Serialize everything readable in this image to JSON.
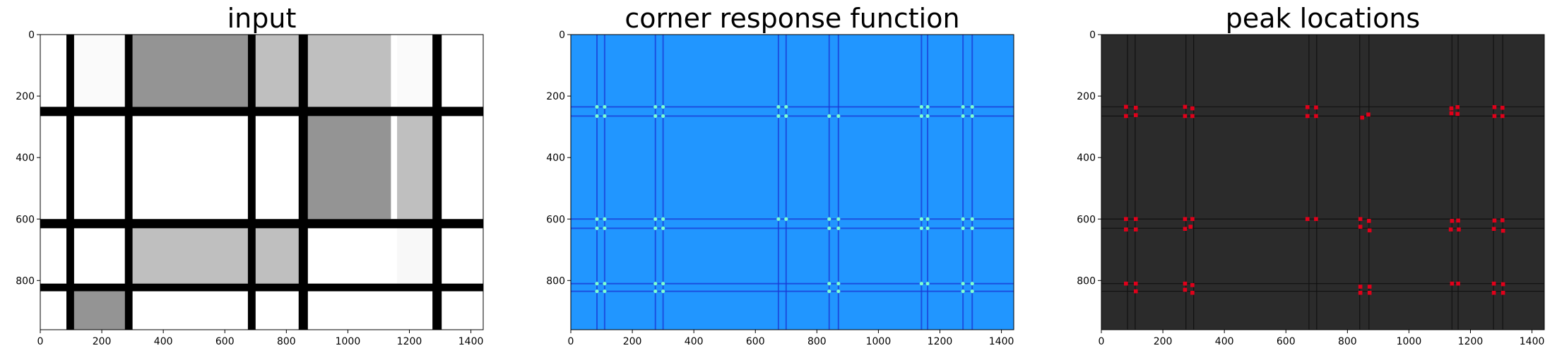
{
  "chart_data": [
    {
      "type": "heatmap",
      "title": "input",
      "colormap": "gray",
      "xlim": [
        0,
        1440
      ],
      "ylim": [
        960,
        0
      ],
      "xticks": [
        0,
        200,
        400,
        600,
        800,
        1000,
        1200,
        1400
      ],
      "yticks": [
        0,
        200,
        400,
        600,
        800
      ],
      "background": "#ffffff",
      "bars_color": "#000000",
      "v_bars": [
        [
          85,
          110
        ],
        [
          275,
          300
        ],
        [
          675,
          700
        ],
        [
          840,
          870
        ],
        [
          1275,
          1305
        ]
      ],
      "h_bars": [
        [
          235,
          265
        ],
        [
          600,
          630
        ],
        [
          810,
          835
        ]
      ],
      "filled_cells": [
        {
          "x": [
            300,
            675
          ],
          "y": [
            0,
            235
          ],
          "shade": "#949494"
        },
        {
          "x": [
            700,
            1140
          ],
          "y": [
            0,
            235
          ],
          "shade": "#bfbfbf"
        },
        {
          "x": [
            870,
            1140
          ],
          "y": [
            265,
            600
          ],
          "shade": "#949494"
        },
        {
          "x": [
            1160,
            1275
          ],
          "y": [
            265,
            600
          ],
          "shade": "#bfbfbf"
        },
        {
          "x": [
            300,
            840
          ],
          "y": [
            630,
            810
          ],
          "shade": "#bfbfbf"
        },
        {
          "x": [
            1160,
            1275
          ],
          "y": [
            630,
            810
          ],
          "shade": "#f8f8f8"
        },
        {
          "x": [
            110,
            275
          ],
          "y": [
            835,
            960
          ],
          "shade": "#949494"
        },
        {
          "x": [
            110,
            275
          ],
          "y": [
            0,
            235
          ],
          "shade": "#fafafa"
        },
        {
          "x": [
            1160,
            1275
          ],
          "y": [
            0,
            235
          ],
          "shade": "#fafafa"
        }
      ]
    },
    {
      "type": "heatmap",
      "title": "corner response function",
      "colormap": "jet",
      "xlim": [
        0,
        1440
      ],
      "ylim": [
        960,
        0
      ],
      "xticks": [
        0,
        200,
        400,
        600,
        800,
        1000,
        1200,
        1400
      ],
      "yticks": [
        0,
        200,
        400,
        600,
        800
      ],
      "background": "#2196ff",
      "edge_color": "#1a3ad6",
      "corner_color": "#7fffd0",
      "v_edges": [
        85,
        110,
        275,
        300,
        675,
        700,
        840,
        870,
        1140,
        1160,
        1275,
        1305
      ],
      "h_edges": [
        235,
        265,
        600,
        630,
        810,
        835
      ],
      "corners": [
        [
          85,
          235
        ],
        [
          110,
          235
        ],
        [
          275,
          235
        ],
        [
          300,
          235
        ],
        [
          675,
          235
        ],
        [
          700,
          235
        ],
        [
          1140,
          235
        ],
        [
          1160,
          235
        ],
        [
          1275,
          235
        ],
        [
          1305,
          235
        ],
        [
          85,
          265
        ],
        [
          110,
          265
        ],
        [
          275,
          265
        ],
        [
          300,
          265
        ],
        [
          675,
          265
        ],
        [
          700,
          265
        ],
        [
          840,
          265
        ],
        [
          870,
          265
        ],
        [
          1140,
          265
        ],
        [
          1160,
          265
        ],
        [
          1275,
          265
        ],
        [
          1305,
          265
        ],
        [
          85,
          600
        ],
        [
          110,
          600
        ],
        [
          275,
          600
        ],
        [
          300,
          600
        ],
        [
          675,
          600
        ],
        [
          700,
          600
        ],
        [
          840,
          600
        ],
        [
          870,
          600
        ],
        [
          1140,
          600
        ],
        [
          1160,
          600
        ],
        [
          1275,
          600
        ],
        [
          1305,
          600
        ],
        [
          85,
          630
        ],
        [
          110,
          630
        ],
        [
          275,
          630
        ],
        [
          300,
          630
        ],
        [
          840,
          630
        ],
        [
          870,
          630
        ],
        [
          1140,
          630
        ],
        [
          1160,
          630
        ],
        [
          1275,
          630
        ],
        [
          1305,
          630
        ],
        [
          85,
          810
        ],
        [
          110,
          810
        ],
        [
          275,
          810
        ],
        [
          300,
          810
        ],
        [
          840,
          810
        ],
        [
          870,
          810
        ],
        [
          1140,
          810
        ],
        [
          1160,
          810
        ],
        [
          1275,
          810
        ],
        [
          1305,
          810
        ],
        [
          85,
          835
        ],
        [
          110,
          835
        ],
        [
          275,
          835
        ],
        [
          300,
          835
        ],
        [
          840,
          835
        ],
        [
          870,
          835
        ],
        [
          1275,
          835
        ],
        [
          1305,
          835
        ]
      ]
    },
    {
      "type": "scatter",
      "title": "peak locations",
      "xlim": [
        0,
        1440
      ],
      "ylim": [
        960,
        0
      ],
      "xticks": [
        0,
        200,
        400,
        600,
        800,
        1000,
        1200,
        1400
      ],
      "yticks": [
        0,
        200,
        400,
        600,
        800
      ],
      "background": "#2b2b2b",
      "edge_color": "#111111",
      "marker_color": "#e0001a",
      "v_edges": [
        85,
        110,
        275,
        300,
        675,
        700,
        840,
        870,
        1140,
        1160,
        1275,
        1305
      ],
      "h_edges": [
        235,
        265,
        600,
        630,
        810,
        835
      ],
      "points": [
        [
          80,
          235
        ],
        [
          112,
          238
        ],
        [
          272,
          235
        ],
        [
          296,
          240
        ],
        [
          670,
          236
        ],
        [
          698,
          237
        ],
        [
          1138,
          240
        ],
        [
          1158,
          236
        ],
        [
          1278,
          236
        ],
        [
          1304,
          238
        ],
        [
          80,
          265
        ],
        [
          112,
          262
        ],
        [
          272,
          265
        ],
        [
          296,
          265
        ],
        [
          670,
          265
        ],
        [
          698,
          265
        ],
        [
          848,
          270
        ],
        [
          868,
          260
        ],
        [
          1138,
          256
        ],
        [
          1158,
          258
        ],
        [
          1278,
          265
        ],
        [
          1304,
          265
        ],
        [
          80,
          600
        ],
        [
          112,
          600
        ],
        [
          272,
          600
        ],
        [
          296,
          600
        ],
        [
          670,
          600
        ],
        [
          698,
          600
        ],
        [
          842,
          600
        ],
        [
          870,
          606
        ],
        [
          1140,
          606
        ],
        [
          1160,
          605
        ],
        [
          1278,
          605
        ],
        [
          1304,
          604
        ],
        [
          80,
          634
        ],
        [
          112,
          634
        ],
        [
          272,
          632
        ],
        [
          290,
          625
        ],
        [
          842,
          625
        ],
        [
          872,
          637
        ],
        [
          1136,
          634
        ],
        [
          1162,
          634
        ],
        [
          1276,
          632
        ],
        [
          1306,
          638
        ],
        [
          80,
          810
        ],
        [
          112,
          810
        ],
        [
          272,
          810
        ],
        [
          296,
          815
        ],
        [
          842,
          820
        ],
        [
          872,
          820
        ],
        [
          1140,
          810
        ],
        [
          1160,
          810
        ],
        [
          1276,
          810
        ],
        [
          1306,
          812
        ],
        [
          112,
          835
        ],
        [
          272,
          830
        ],
        [
          296,
          840
        ],
        [
          842,
          840
        ],
        [
          872,
          840
        ],
        [
          1276,
          840
        ],
        [
          1306,
          840
        ]
      ]
    }
  ]
}
